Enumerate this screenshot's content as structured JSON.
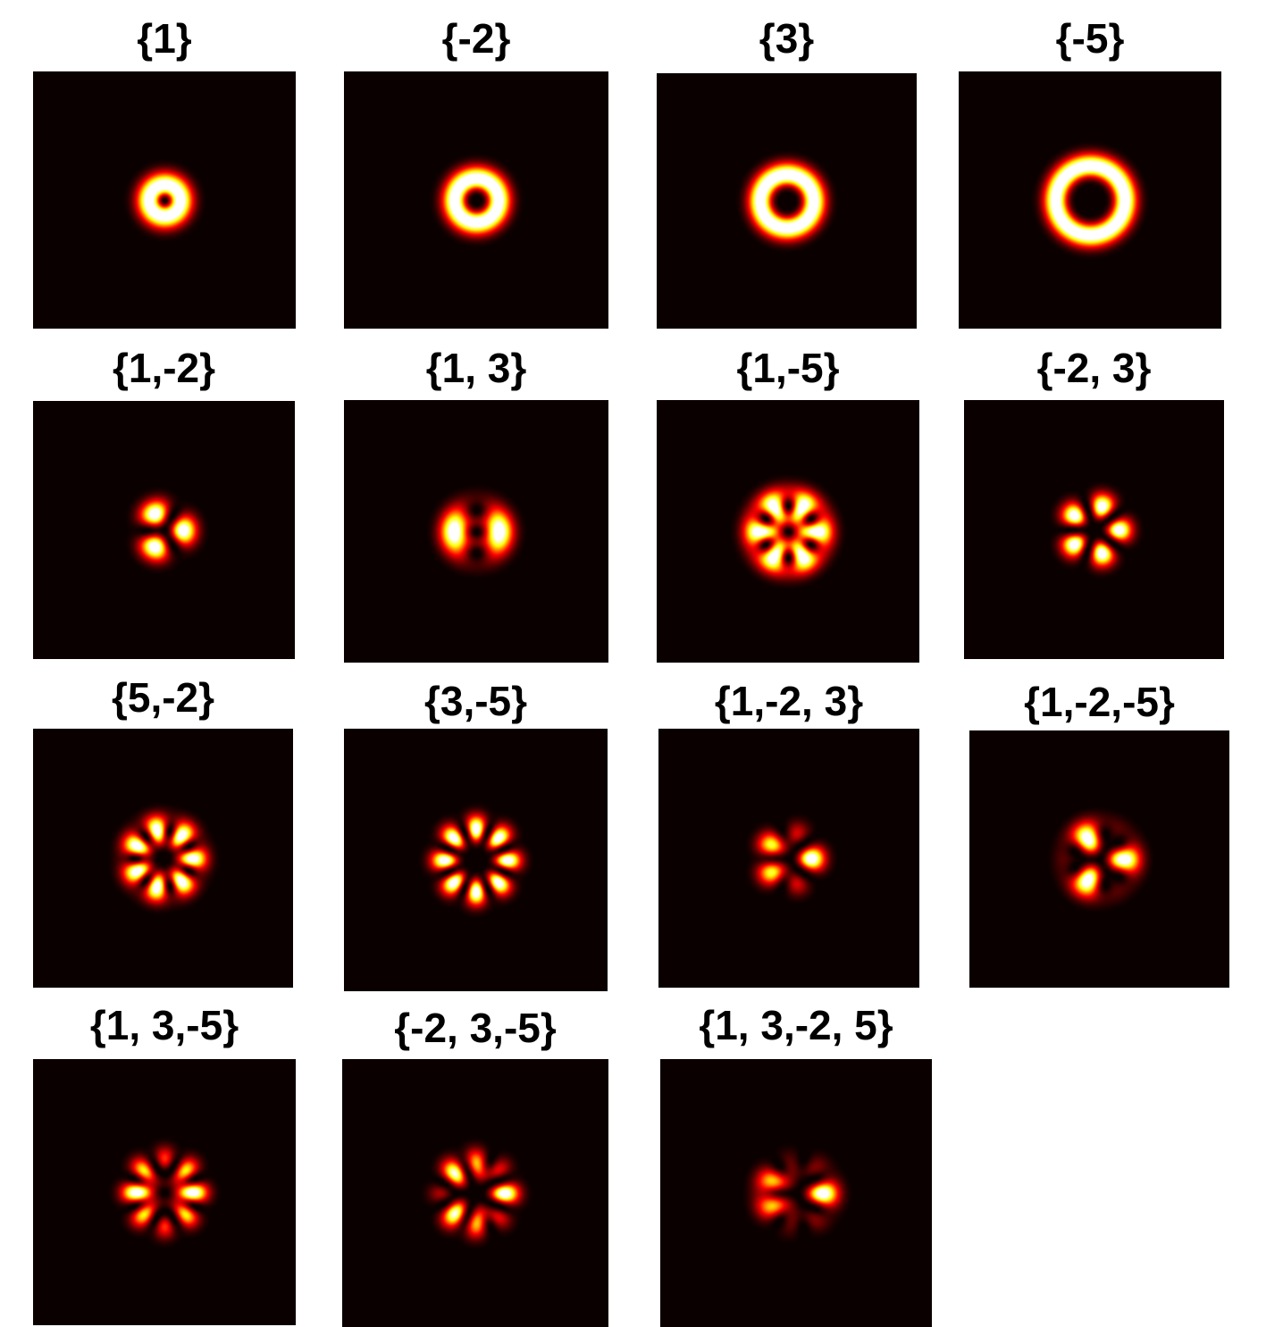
{
  "colors": {
    "background": "#0a0000",
    "colormap": "hot"
  },
  "panels": [
    {
      "title": "{1}",
      "modes": [
        1
      ]
    },
    {
      "title": "{-2}",
      "modes": [
        -2
      ]
    },
    {
      "title": "{3}",
      "modes": [
        3
      ]
    },
    {
      "title": "{-5}",
      "modes": [
        -5
      ]
    },
    {
      "title": "{1,-2}",
      "modes": [
        1,
        -2
      ]
    },
    {
      "title": "{1, 3}",
      "modes": [
        1,
        3
      ]
    },
    {
      "title": "{1,-5}",
      "modes": [
        1,
        -5
      ]
    },
    {
      "title": "{-2, 3}",
      "modes": [
        -2,
        3
      ]
    },
    {
      "title": "{5,-2}",
      "modes": [
        5,
        -2
      ]
    },
    {
      "title": "{3,-5}",
      "modes": [
        3,
        -5
      ]
    },
    {
      "title": "{1,-2, 3}",
      "modes": [
        1,
        -2,
        3
      ]
    },
    {
      "title": "{1,-2,-5}",
      "modes": [
        1,
        -2,
        -5
      ]
    },
    {
      "title": "{1, 3,-5}",
      "modes": [
        1,
        3,
        -5
      ]
    },
    {
      "title": "{-2, 3,-5}",
      "modes": [
        -2,
        3,
        -5
      ]
    },
    {
      "title": "{1, 3,-2, 5}",
      "modes": [
        1,
        3,
        -2,
        5
      ]
    }
  ]
}
